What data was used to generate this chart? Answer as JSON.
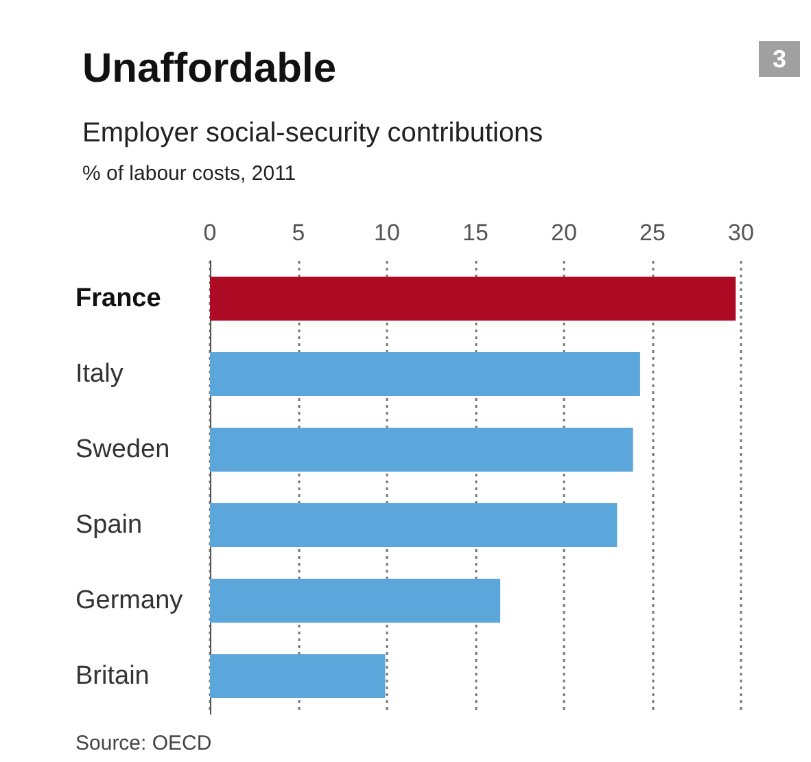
{
  "chart_data": {
    "type": "bar",
    "orientation": "horizontal",
    "title": "Unaffordable",
    "subtitle": "Employer social-security contributions",
    "xlabel": "% of labour costs, 2011",
    "categories": [
      "France",
      "Italy",
      "Sweden",
      "Spain",
      "Germany",
      "Britain"
    ],
    "values": [
      29.7,
      24.3,
      23.9,
      23.0,
      16.4,
      9.9
    ],
    "colors": [
      "#ad0a24",
      "#5ba7db",
      "#5ba7db",
      "#5ba7db",
      "#5ba7db",
      "#5ba7db"
    ],
    "xlim": [
      0,
      30
    ],
    "xticks": [
      0,
      5,
      10,
      15,
      20,
      25,
      30
    ],
    "grid": "x",
    "annotations": [
      "3",
      "Source: OECD"
    ]
  }
}
